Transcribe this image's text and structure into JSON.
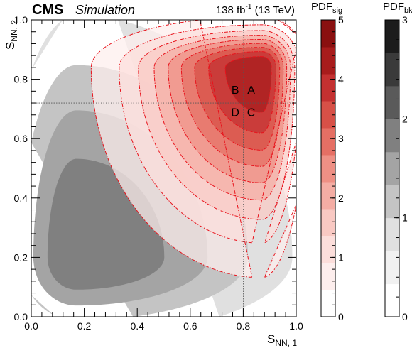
{
  "chart_data": {
    "type": "heatmap",
    "header": {
      "brand": "CMS",
      "tag": "Simulation",
      "lumi": "138 fb",
      "lumi_sup": "-1",
      "energy": "(13 TeV)"
    },
    "xlabel": {
      "base": "S",
      "sub": "NN, 1"
    },
    "ylabel": {
      "base": "S",
      "sub": "NN, 2"
    },
    "xlim": [
      0.0,
      1.0
    ],
    "ylim": [
      0.0,
      1.0
    ],
    "xticks": [
      "0.0",
      "0.2",
      "0.4",
      "0.6",
      "0.8",
      "1.0"
    ],
    "yticks": [
      "0.0",
      "0.2",
      "0.4",
      "0.6",
      "0.8",
      "1.0"
    ],
    "x_cut": 0.8,
    "y_cut": 0.72,
    "regions": [
      {
        "label": "A",
        "x": 0.83,
        "y": 0.765
      },
      {
        "label": "B",
        "x": 0.77,
        "y": 0.765
      },
      {
        "label": "C",
        "x": 0.83,
        "y": 0.69
      },
      {
        "label": "D",
        "x": 0.77,
        "y": 0.69
      }
    ],
    "signal": {
      "colorbar_label": {
        "base": "PDF",
        "sub": "sig"
      },
      "range": [
        0,
        5
      ],
      "ticks": [
        "0",
        "1",
        "2",
        "3",
        "4",
        "5"
      ],
      "peak": [
        0.87,
        0.84
      ],
      "spread_x": [
        0.3,
        0.08
      ],
      "spread_y": [
        0.33,
        0.08
      ],
      "peak_value": 5.0,
      "levels": [
        0.5,
        1.0,
        1.5,
        2.0,
        2.5,
        3.0,
        3.5,
        4.0,
        4.5
      ],
      "colors": [
        "#ffffff",
        "#fdeeed",
        "#fcdedb",
        "#f9c9c3",
        "#f4ada4",
        "#ee9085",
        "#e56f64",
        "#d75047",
        "#c43131",
        "#a81c1c",
        "#8a1010"
      ]
    },
    "background": {
      "colorbar_label": {
        "base": "PDF",
        "sub": "bkg"
      },
      "range": [
        0,
        3
      ],
      "ticks": [
        "0",
        "1",
        "2",
        "3"
      ],
      "peak": [
        0.17,
        0.2
      ],
      "peak_value": 3.0,
      "levels": [
        0.5,
        1.0,
        1.5,
        2.0,
        2.5
      ],
      "colors": [
        "#ffffff",
        "#f1f1f1",
        "#e0e0e0",
        "#c4c4c4",
        "#a4a4a4",
        "#808080",
        "#5a5a5a",
        "#3a3a3a",
        "#1c1c1c"
      ]
    }
  }
}
